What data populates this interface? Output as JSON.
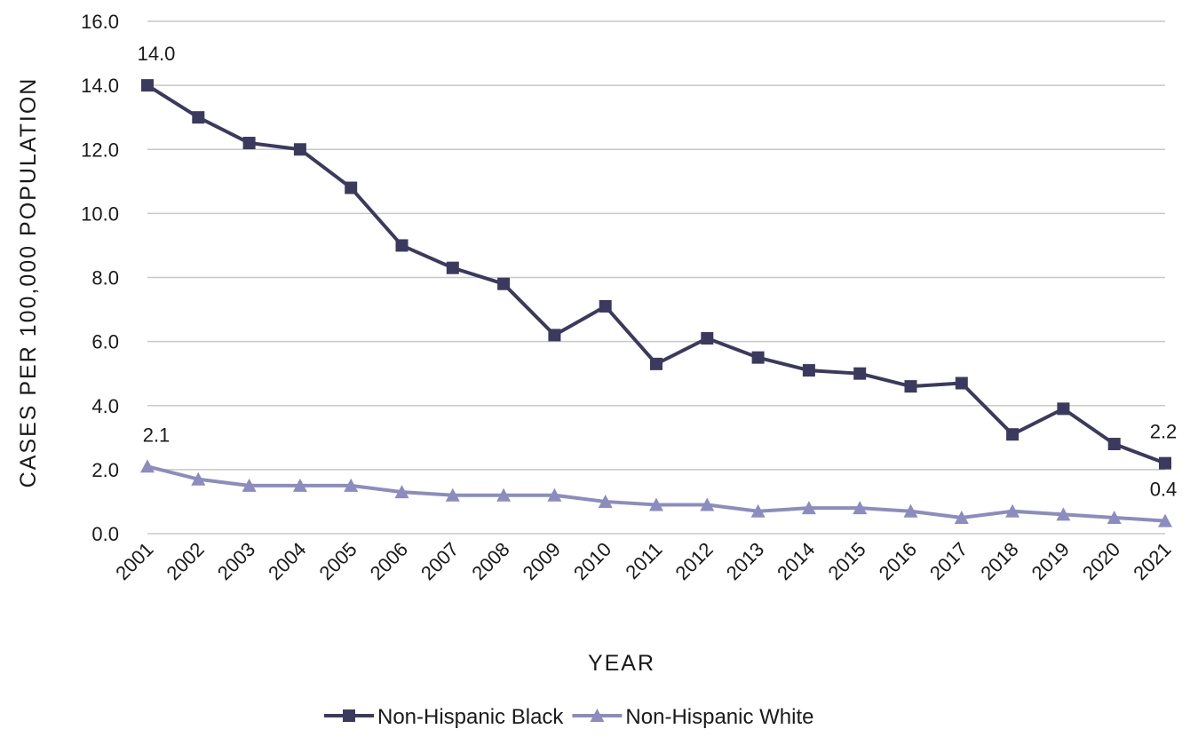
{
  "chart_data": {
    "type": "line",
    "title": "",
    "xlabel": "YEAR",
    "ylabel": "CASES PER 100,000 POPULATION",
    "ylim": [
      0,
      16
    ],
    "y_ticks": [
      "0.0",
      "2.0",
      "4.0",
      "6.0",
      "8.0",
      "10.0",
      "12.0",
      "14.0",
      "16.0"
    ],
    "grid": "horizontal",
    "legend_position": "bottom",
    "categories": [
      "2001",
      "2002",
      "2003",
      "2004",
      "2005",
      "2006",
      "2007",
      "2008",
      "2009",
      "2010",
      "2011",
      "2012",
      "2013",
      "2014",
      "2015",
      "2016",
      "2017",
      "2018",
      "2019",
      "2020",
      "2021"
    ],
    "series": [
      {
        "name": "Non-Hispanic Black",
        "color": "#3b3a5e",
        "marker": "square",
        "values": [
          14.0,
          13.0,
          12.2,
          12.0,
          10.8,
          9.0,
          8.3,
          7.8,
          6.2,
          7.1,
          5.3,
          6.1,
          5.5,
          5.1,
          5.0,
          4.6,
          4.7,
          3.1,
          3.9,
          2.8,
          2.2
        ],
        "data_labels": [
          {
            "index": 0,
            "text": "14.0"
          },
          {
            "index": 20,
            "text": "2.2"
          }
        ]
      },
      {
        "name": "Non-Hispanic White",
        "color": "#8c8cbf",
        "marker": "triangle",
        "values": [
          2.1,
          1.7,
          1.5,
          1.5,
          1.5,
          1.3,
          1.2,
          1.2,
          1.2,
          1.0,
          0.9,
          0.9,
          0.7,
          0.8,
          0.8,
          0.7,
          0.5,
          0.7,
          0.6,
          0.5,
          0.4
        ],
        "data_labels": [
          {
            "index": 0,
            "text": "2.1"
          },
          {
            "index": 20,
            "text": "0.4"
          }
        ]
      }
    ]
  }
}
